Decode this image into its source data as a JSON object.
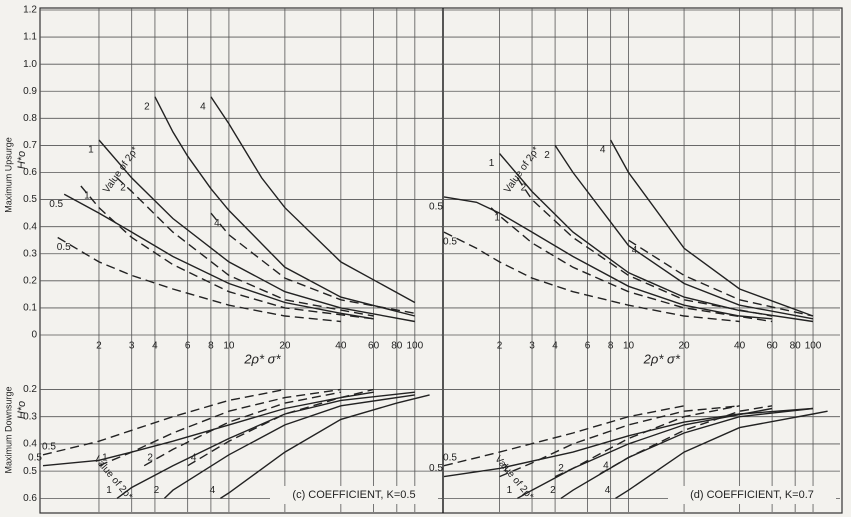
{
  "chart_data": [
    {
      "type": "line",
      "title": "(c) COEFFICIENT, K=0.5",
      "xlabel": "2ρ* σ*",
      "ylabel": "Maximum Upsurge",
      "ysymbol": "H*o",
      "y2label": "Maximum Downsurge",
      "y2symbol": "H*o",
      "curve_label_title": "Value of 2ρ*",
      "xlog": true,
      "grid": true,
      "color": "#222222",
      "xlim": [
        1,
        140
      ],
      "xticks": [
        2,
        3,
        4,
        6,
        8,
        10,
        20,
        40,
        60,
        80,
        100
      ],
      "ylim": [
        0,
        1.2
      ],
      "yticks": [
        0,
        0.1,
        0.2,
        0.3,
        0.4,
        0.5,
        0.6,
        0.7,
        0.8,
        0.9,
        {
          "value": 1,
          "label": "1.0"
        },
        1.1,
        1.2
      ],
      "y2lim": [
        0,
        0.65
      ],
      "y2ticks": [
        0.2,
        0.3,
        0.4,
        0.5,
        0.6
      ],
      "y2_inverted": true,
      "series": [
        {
          "name": "0.5",
          "dashed": false,
          "x": [
            1.3,
            2,
            3,
            5,
            10,
            20,
            40,
            60
          ],
          "values": [
            0.52,
            0.45,
            0.38,
            0.29,
            0.19,
            0.12,
            0.08,
            0.06
          ]
        },
        {
          "name": "1",
          "dashed": false,
          "x": [
            2,
            3,
            5,
            10,
            20,
            40,
            100
          ],
          "values": [
            0.72,
            0.58,
            0.43,
            0.27,
            0.16,
            0.1,
            0.05
          ]
        },
        {
          "name": "2",
          "dashed": false,
          "x": [
            4,
            5,
            6,
            8,
            10,
            20,
            40,
            100
          ],
          "values": [
            0.88,
            0.75,
            0.66,
            0.54,
            0.46,
            0.25,
            0.14,
            0.07
          ]
        },
        {
          "name": "4",
          "dashed": false,
          "x": [
            8,
            10,
            15,
            20,
            40,
            100
          ],
          "values": [
            0.88,
            0.78,
            0.58,
            0.47,
            0.27,
            0.12
          ]
        },
        {
          "name": "0.5",
          "dashed": true,
          "x": [
            1.2,
            2,
            3,
            5,
            10,
            20,
            40
          ],
          "values": [
            0.36,
            0.27,
            0.22,
            0.17,
            0.11,
            0.07,
            0.05
          ]
        },
        {
          "name": "1",
          "dashed": true,
          "x": [
            1.6,
            2,
            3,
            5,
            10,
            20,
            60
          ],
          "values": [
            0.55,
            0.47,
            0.36,
            0.26,
            0.16,
            0.1,
            0.06
          ]
        },
        {
          "name": "2",
          "dashed": true,
          "x": [
            2.5,
            3,
            5,
            10,
            20,
            60
          ],
          "values": [
            0.58,
            0.53,
            0.38,
            0.22,
            0.13,
            0.07
          ]
        },
        {
          "name": "4",
          "dashed": true,
          "x": [
            8,
            10,
            20,
            40,
            100
          ],
          "values": [
            0.45,
            0.37,
            0.21,
            0.13,
            0.08
          ]
        },
        {
          "name": "0.5",
          "dashed": false,
          "axis": "y2",
          "x": [
            1,
            2,
            3,
            5,
            10,
            20,
            40,
            60
          ],
          "values": [
            0.48,
            0.46,
            0.43,
            0.39,
            0.33,
            0.27,
            0.23,
            0.21
          ]
        },
        {
          "name": "1",
          "dashed": false,
          "axis": "y2",
          "x": [
            2.5,
            3,
            5,
            10,
            20,
            40,
            100
          ],
          "values": [
            0.6,
            0.56,
            0.48,
            0.38,
            0.29,
            0.24,
            0.21
          ]
        },
        {
          "name": "2",
          "dashed": false,
          "axis": "y2",
          "x": [
            4.5,
            5,
            10,
            20,
            40,
            100
          ],
          "values": [
            0.6,
            0.57,
            0.44,
            0.33,
            0.26,
            0.22
          ]
        },
        {
          "name": "4",
          "dashed": false,
          "axis": "y2",
          "x": [
            9,
            10,
            20,
            40,
            80,
            120
          ],
          "values": [
            0.6,
            0.58,
            0.43,
            0.31,
            0.25,
            0.22
          ]
        },
        {
          "name": "0.5",
          "dashed": true,
          "axis": "y2",
          "x": [
            1,
            2,
            3,
            5,
            10,
            20
          ],
          "values": [
            0.44,
            0.39,
            0.35,
            0.3,
            0.24,
            0.2
          ]
        },
        {
          "name": "1",
          "dashed": true,
          "axis": "y2",
          "x": [
            2,
            3,
            5,
            10,
            20,
            40
          ],
          "values": [
            0.48,
            0.43,
            0.36,
            0.28,
            0.23,
            0.2
          ]
        },
        {
          "name": "2",
          "dashed": true,
          "axis": "y2",
          "x": [
            3.5,
            5,
            10,
            20,
            40
          ],
          "values": [
            0.48,
            0.42,
            0.32,
            0.25,
            0.21
          ]
        },
        {
          "name": "4",
          "dashed": true,
          "axis": "y2",
          "x": [
            6,
            10,
            20,
            40,
            60
          ],
          "values": [
            0.48,
            0.39,
            0.29,
            0.23,
            0.2
          ]
        }
      ]
    },
    {
      "type": "line",
      "title": "(d) COEFFICIENT, K=0.7",
      "xlabel": "2ρ* σ*",
      "curve_label_title": "Value of 2ρ*",
      "xlog": true,
      "grid": true,
      "color": "#222222",
      "xlim": [
        1,
        140
      ],
      "xticks": [
        2,
        3,
        4,
        6,
        8,
        10,
        20,
        40,
        60,
        80,
        100
      ],
      "ylim": [
        0,
        1.2
      ],
      "yticks": [
        0,
        0.1,
        0.2,
        0.3,
        0.4,
        0.5,
        0.6,
        0.7,
        0.8,
        0.9,
        1,
        1.1,
        1.2
      ],
      "y2lim": [
        0,
        0.65
      ],
      "y2ticks": [
        0.2,
        0.3,
        0.4,
        0.5,
        0.6
      ],
      "y2_inverted": true,
      "series": [
        {
          "name": "0.5",
          "dashed": false,
          "x": [
            1,
            1.5,
            2,
            3,
            5,
            10,
            20,
            40,
            60
          ],
          "values": [
            0.51,
            0.49,
            0.45,
            0.38,
            0.29,
            0.18,
            0.11,
            0.07,
            0.06
          ]
        },
        {
          "name": "1",
          "dashed": false,
          "x": [
            2,
            3,
            5,
            10,
            20,
            40,
            100
          ],
          "values": [
            0.67,
            0.53,
            0.38,
            0.23,
            0.14,
            0.09,
            0.05
          ]
        },
        {
          "name": "2",
          "dashed": false,
          "x": [
            4,
            5,
            10,
            20,
            40,
            100
          ],
          "values": [
            0.7,
            0.6,
            0.33,
            0.19,
            0.11,
            0.06
          ]
        },
        {
          "name": "4",
          "dashed": false,
          "x": [
            8,
            10,
            20,
            40,
            100
          ],
          "values": [
            0.72,
            0.6,
            0.32,
            0.17,
            0.07
          ]
        },
        {
          "name": "0.5",
          "dashed": true,
          "x": [
            1,
            1.5,
            2,
            3,
            5,
            10,
            20,
            40
          ],
          "values": [
            0.38,
            0.32,
            0.27,
            0.21,
            0.16,
            0.11,
            0.07,
            0.05
          ]
        },
        {
          "name": "1",
          "dashed": true,
          "x": [
            1.8,
            2,
            3,
            5,
            10,
            20,
            60
          ],
          "values": [
            0.47,
            0.44,
            0.34,
            0.25,
            0.16,
            0.1,
            0.05
          ]
        },
        {
          "name": "2",
          "dashed": true,
          "x": [
            2.5,
            3,
            5,
            10,
            20,
            60
          ],
          "values": [
            0.58,
            0.5,
            0.36,
            0.22,
            0.13,
            0.07
          ]
        },
        {
          "name": "4",
          "dashed": true,
          "x": [
            10,
            20,
            40,
            100
          ],
          "values": [
            0.35,
            0.22,
            0.13,
            0.07
          ]
        },
        {
          "name": "0.5",
          "dashed": false,
          "axis": "y2",
          "x": [
            1,
            2,
            5,
            10,
            20,
            40,
            100
          ],
          "values": [
            0.52,
            0.49,
            0.43,
            0.37,
            0.32,
            0.29,
            0.27
          ]
        },
        {
          "name": "1",
          "dashed": false,
          "axis": "y2",
          "x": [
            2.5,
            3,
            5,
            10,
            20,
            60
          ],
          "values": [
            0.6,
            0.57,
            0.49,
            0.4,
            0.33,
            0.27
          ]
        },
        {
          "name": "2",
          "dashed": false,
          "axis": "y2",
          "x": [
            4.3,
            5,
            10,
            20,
            40,
            100
          ],
          "values": [
            0.6,
            0.57,
            0.45,
            0.36,
            0.3,
            0.27
          ]
        },
        {
          "name": "4",
          "dashed": false,
          "axis": "y2",
          "x": [
            8.5,
            10,
            20,
            40,
            100,
            120
          ],
          "values": [
            0.6,
            0.57,
            0.43,
            0.34,
            0.29,
            0.28
          ]
        },
        {
          "name": "0.5",
          "dashed": true,
          "axis": "y2",
          "x": [
            1,
            2,
            5,
            10,
            20
          ],
          "values": [
            0.48,
            0.43,
            0.36,
            0.3,
            0.26
          ]
        },
        {
          "name": "1",
          "dashed": true,
          "axis": "y2",
          "x": [
            2,
            3,
            5,
            10,
            20,
            40
          ],
          "values": [
            0.52,
            0.47,
            0.4,
            0.33,
            0.28,
            0.26
          ]
        },
        {
          "name": "2",
          "dashed": true,
          "axis": "y2",
          "x": [
            4,
            5,
            10,
            20,
            40
          ],
          "values": [
            0.52,
            0.49,
            0.38,
            0.3,
            0.26
          ]
        },
        {
          "name": "4",
          "dashed": true,
          "axis": "y2",
          "x": [
            7,
            10,
            20,
            40,
            60
          ],
          "values": [
            0.51,
            0.45,
            0.35,
            0.28,
            0.26
          ]
        }
      ]
    }
  ]
}
